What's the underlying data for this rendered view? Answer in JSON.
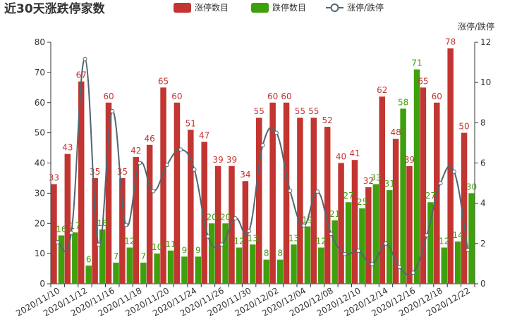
{
  "chart_data": {
    "type": "bar",
    "title": "近30天涨跌停家数",
    "categories": [
      "2020/11/10",
      "2020/11/11",
      "2020/11/12",
      "2020/11/13",
      "2020/11/16",
      "2020/11/17",
      "2020/11/18",
      "2020/11/19",
      "2020/11/20",
      "2020/11/23",
      "2020/11/24",
      "2020/11/25",
      "2020/11/26",
      "2020/11/27",
      "2020/11/30",
      "2020/12/01",
      "2020/12/02",
      "2020/12/03",
      "2020/12/04",
      "2020/12/07",
      "2020/12/08",
      "2020/12/09",
      "2020/12/10",
      "2020/12/11",
      "2020/12/14",
      "2020/12/15",
      "2020/12/16",
      "2020/12/17",
      "2020/12/18",
      "2020/12/21",
      "2020/12/22"
    ],
    "x_tick_labels": [
      "2020/11/10",
      "2020/11/12",
      "2020/11/16",
      "2020/11/18",
      "2020/11/20",
      "2020/11/24",
      "2020/11/26",
      "2020/11/30",
      "2020/12/02",
      "2020/12/04",
      "2020/12/08",
      "2020/12/10",
      "2020/12/14",
      "2020/12/16",
      "2020/12/18",
      "2020/12/22"
    ],
    "series": [
      {
        "name": "涨停数目",
        "type": "bar",
        "color": "#c23531",
        "values": [
          33,
          43,
          67,
          35,
          60,
          35,
          42,
          46,
          65,
          60,
          51,
          47,
          39,
          39,
          34,
          55,
          60,
          60,
          55,
          55,
          52,
          40,
          41,
          32,
          62,
          48,
          39,
          65,
          60,
          78,
          50
        ]
      },
      {
        "name": "跌停数目",
        "type": "bar",
        "color": "#3fa00d",
        "values": [
          16,
          17,
          6,
          18,
          7,
          12,
          7,
          10,
          11,
          9,
          9,
          20,
          20,
          12,
          13,
          8,
          8,
          13,
          19,
          12,
          21,
          27,
          25,
          33,
          31,
          58,
          71,
          27,
          12,
          14,
          30
        ]
      },
      {
        "name": "涨停/跌停",
        "type": "line",
        "color": "#546570",
        "axis": "right",
        "values": [
          2.06,
          2.53,
          11.17,
          1.94,
          8.57,
          2.92,
          6.0,
          4.6,
          5.91,
          6.67,
          5.67,
          2.35,
          1.95,
          3.25,
          2.62,
          6.88,
          7.5,
          4.62,
          2.89,
          4.58,
          2.48,
          1.48,
          1.64,
          0.97,
          2.0,
          0.83,
          0.55,
          2.41,
          5.0,
          5.57,
          1.67
        ]
      }
    ],
    "y_left": {
      "min": 0,
      "max": 80,
      "ticks": [
        0,
        10,
        20,
        30,
        40,
        50,
        60,
        70,
        80
      ]
    },
    "y_right": {
      "min": 0,
      "max": 12,
      "ticks": [
        0,
        2,
        4,
        6,
        8,
        10,
        12
      ],
      "name": "涨停/跌停"
    },
    "legend_position": "top-center",
    "grid": false
  }
}
